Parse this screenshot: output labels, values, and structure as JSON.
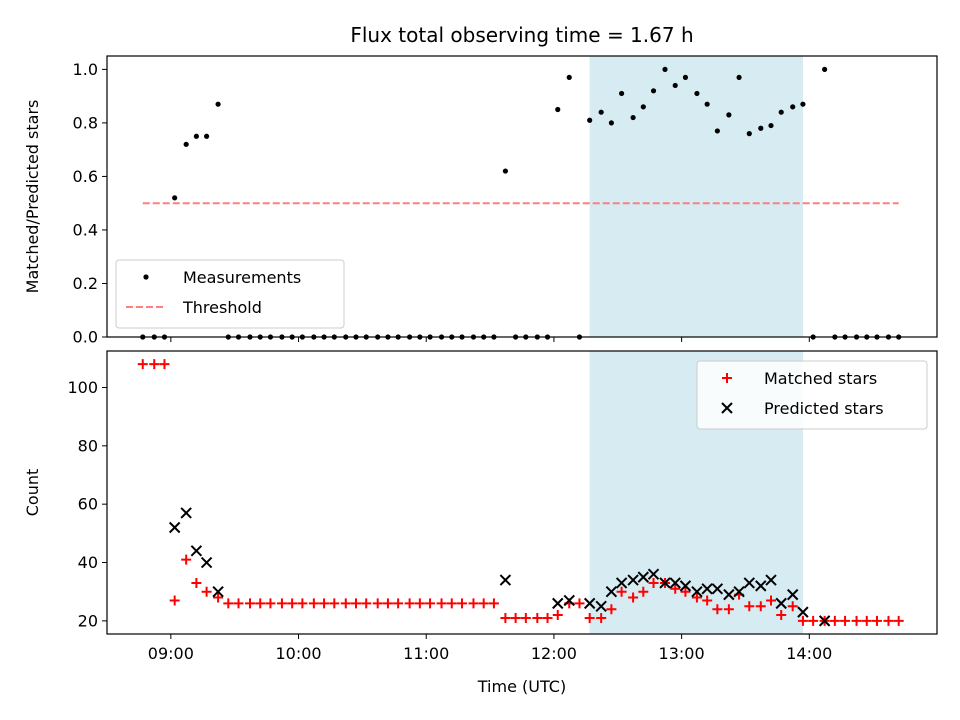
{
  "chart_data": {
    "title": "Flux total observing time = 1.67 h",
    "xlabel": "Time (UTC)",
    "x_ticks": [
      "09:00",
      "10:00",
      "11:00",
      "12:00",
      "13:00",
      "14:00"
    ],
    "x_tick_hours": [
      9,
      10,
      11,
      12,
      13,
      14
    ],
    "xlim_hours": [
      8.5,
      15.0
    ],
    "highlight_span_hours": [
      12.28,
      13.95
    ],
    "highlight_color": "#add8e6",
    "panels": [
      {
        "type": "scatter",
        "ylabel": "Matched/Predicted stars",
        "ylim": [
          0,
          1.05
        ],
        "y_ticks": [
          0.0,
          0.2,
          0.4,
          0.6,
          0.8,
          1.0
        ],
        "y_tick_labels": [
          "0.0",
          "0.2",
          "0.4",
          "0.6",
          "0.8",
          "1.0"
        ],
        "legend": {
          "position": "lower-left",
          "items": [
            "Measurements",
            "Threshold"
          ]
        },
        "series": [
          {
            "name": "Measurements",
            "marker": "dot",
            "color": "#000000",
            "points": [
              [
                8.78,
                0
              ],
              [
                8.87,
                0
              ],
              [
                8.95,
                0
              ],
              [
                9.03,
                0.52
              ],
              [
                9.12,
                0.72
              ],
              [
                9.2,
                0.75
              ],
              [
                9.28,
                0.75
              ],
              [
                9.37,
                0.87
              ],
              [
                9.45,
                0
              ],
              [
                9.53,
                0
              ],
              [
                9.62,
                0
              ],
              [
                9.7,
                0
              ],
              [
                9.78,
                0
              ],
              [
                9.87,
                0
              ],
              [
                9.95,
                0
              ],
              [
                10.03,
                0
              ],
              [
                10.12,
                0
              ],
              [
                10.2,
                0
              ],
              [
                10.28,
                0
              ],
              [
                10.37,
                0
              ],
              [
                10.45,
                0
              ],
              [
                10.53,
                0
              ],
              [
                10.62,
                0
              ],
              [
                10.7,
                0
              ],
              [
                10.78,
                0
              ],
              [
                10.87,
                0
              ],
              [
                10.95,
                0
              ],
              [
                11.03,
                0
              ],
              [
                11.12,
                0
              ],
              [
                11.2,
                0
              ],
              [
                11.28,
                0
              ],
              [
                11.37,
                0
              ],
              [
                11.45,
                0
              ],
              [
                11.53,
                0
              ],
              [
                11.62,
                0.62
              ],
              [
                11.7,
                0
              ],
              [
                11.78,
                0
              ],
              [
                11.87,
                0
              ],
              [
                11.95,
                0
              ],
              [
                12.03,
                0.85
              ],
              [
                12.12,
                0.97
              ],
              [
                12.2,
                0
              ],
              [
                12.28,
                0.81
              ],
              [
                12.37,
                0.84
              ],
              [
                12.45,
                0.8
              ],
              [
                12.53,
                0.91
              ],
              [
                12.62,
                0.82
              ],
              [
                12.7,
                0.86
              ],
              [
                12.78,
                0.92
              ],
              [
                12.87,
                1.0
              ],
              [
                12.95,
                0.94
              ],
              [
                13.03,
                0.97
              ],
              [
                13.12,
                0.91
              ],
              [
                13.2,
                0.87
              ],
              [
                13.28,
                0.77
              ],
              [
                13.37,
                0.83
              ],
              [
                13.45,
                0.97
              ],
              [
                13.53,
                0.76
              ],
              [
                13.62,
                0.78
              ],
              [
                13.7,
                0.79
              ],
              [
                13.78,
                0.84
              ],
              [
                13.87,
                0.86
              ],
              [
                13.95,
                0.87
              ],
              [
                14.03,
                0
              ],
              [
                14.12,
                1.0
              ],
              [
                14.2,
                0
              ],
              [
                14.28,
                0
              ],
              [
                14.37,
                0
              ],
              [
                14.45,
                0
              ],
              [
                14.53,
                0
              ],
              [
                14.62,
                0
              ],
              [
                14.7,
                0
              ]
            ]
          },
          {
            "name": "Threshold",
            "marker": "dashed-line",
            "color": "#ff7f7f",
            "x": [
              8.78,
              14.7
            ],
            "y": [
              0.5,
              0.5
            ]
          }
        ]
      },
      {
        "type": "scatter",
        "ylabel": "Count",
        "ylim": [
          15.5,
          112.5
        ],
        "y_ticks": [
          20,
          40,
          60,
          80,
          100
        ],
        "y_tick_labels": [
          "20",
          "40",
          "60",
          "80",
          "100"
        ],
        "legend": {
          "position": "upper-right",
          "items": [
            "Matched stars",
            "Predicted stars"
          ]
        },
        "series": [
          {
            "name": "Matched stars",
            "marker": "plus",
            "color": "#ff0000",
            "points": [
              [
                8.78,
                108
              ],
              [
                8.87,
                108
              ],
              [
                8.95,
                108
              ],
              [
                9.03,
                27
              ],
              [
                9.12,
                41
              ],
              [
                9.2,
                33
              ],
              [
                9.28,
                30
              ],
              [
                9.37,
                28
              ],
              [
                9.45,
                26
              ],
              [
                9.53,
                26
              ],
              [
                9.62,
                26
              ],
              [
                9.7,
                26
              ],
              [
                9.78,
                26
              ],
              [
                9.87,
                26
              ],
              [
                9.95,
                26
              ],
              [
                10.03,
                26
              ],
              [
                10.12,
                26
              ],
              [
                10.2,
                26
              ],
              [
                10.28,
                26
              ],
              [
                10.37,
                26
              ],
              [
                10.45,
                26
              ],
              [
                10.53,
                26
              ],
              [
                10.62,
                26
              ],
              [
                10.7,
                26
              ],
              [
                10.78,
                26
              ],
              [
                10.87,
                26
              ],
              [
                10.95,
                26
              ],
              [
                11.03,
                26
              ],
              [
                11.12,
                26
              ],
              [
                11.2,
                26
              ],
              [
                11.28,
                26
              ],
              [
                11.37,
                26
              ],
              [
                11.45,
                26
              ],
              [
                11.53,
                26
              ],
              [
                11.62,
                21
              ],
              [
                11.7,
                21
              ],
              [
                11.78,
                21
              ],
              [
                11.87,
                21
              ],
              [
                11.95,
                21
              ],
              [
                12.03,
                22
              ],
              [
                12.12,
                26
              ],
              [
                12.2,
                26
              ],
              [
                12.28,
                21
              ],
              [
                12.37,
                21
              ],
              [
                12.45,
                24
              ],
              [
                12.53,
                30
              ],
              [
                12.62,
                28
              ],
              [
                12.7,
                30
              ],
              [
                12.78,
                33
              ],
              [
                12.87,
                33
              ],
              [
                12.95,
                31
              ],
              [
                13.03,
                30
              ],
              [
                13.12,
                28
              ],
              [
                13.2,
                27
              ],
              [
                13.28,
                24
              ],
              [
                13.37,
                24
              ],
              [
                13.45,
                29
              ],
              [
                13.53,
                25
              ],
              [
                13.62,
                25
              ],
              [
                13.7,
                27
              ],
              [
                13.78,
                22
              ],
              [
                13.87,
                25
              ],
              [
                13.95,
                20
              ],
              [
                14.03,
                20
              ],
              [
                14.12,
                20
              ],
              [
                14.2,
                20
              ],
              [
                14.28,
                20
              ],
              [
                14.37,
                20
              ],
              [
                14.45,
                20
              ],
              [
                14.53,
                20
              ],
              [
                14.62,
                20
              ],
              [
                14.7,
                20
              ]
            ]
          },
          {
            "name": "Predicted stars",
            "marker": "x",
            "color": "#000000",
            "points": [
              [
                9.03,
                52
              ],
              [
                9.12,
                57
              ],
              [
                9.2,
                44
              ],
              [
                9.28,
                40
              ],
              [
                9.37,
                30
              ],
              [
                11.62,
                34
              ],
              [
                12.03,
                26
              ],
              [
                12.12,
                27
              ],
              [
                12.28,
                26
              ],
              [
                12.37,
                25
              ],
              [
                12.45,
                30
              ],
              [
                12.53,
                33
              ],
              [
                12.62,
                34
              ],
              [
                12.7,
                35
              ],
              [
                12.78,
                36
              ],
              [
                12.87,
                33
              ],
              [
                12.95,
                33
              ],
              [
                13.03,
                32
              ],
              [
                13.12,
                30
              ],
              [
                13.2,
                31
              ],
              [
                13.28,
                31
              ],
              [
                13.37,
                29
              ],
              [
                13.45,
                30
              ],
              [
                13.53,
                33
              ],
              [
                13.62,
                32
              ],
              [
                13.7,
                34
              ],
              [
                13.78,
                26
              ],
              [
                13.87,
                29
              ],
              [
                13.95,
                23
              ],
              [
                14.12,
                20
              ]
            ]
          }
        ]
      }
    ]
  }
}
